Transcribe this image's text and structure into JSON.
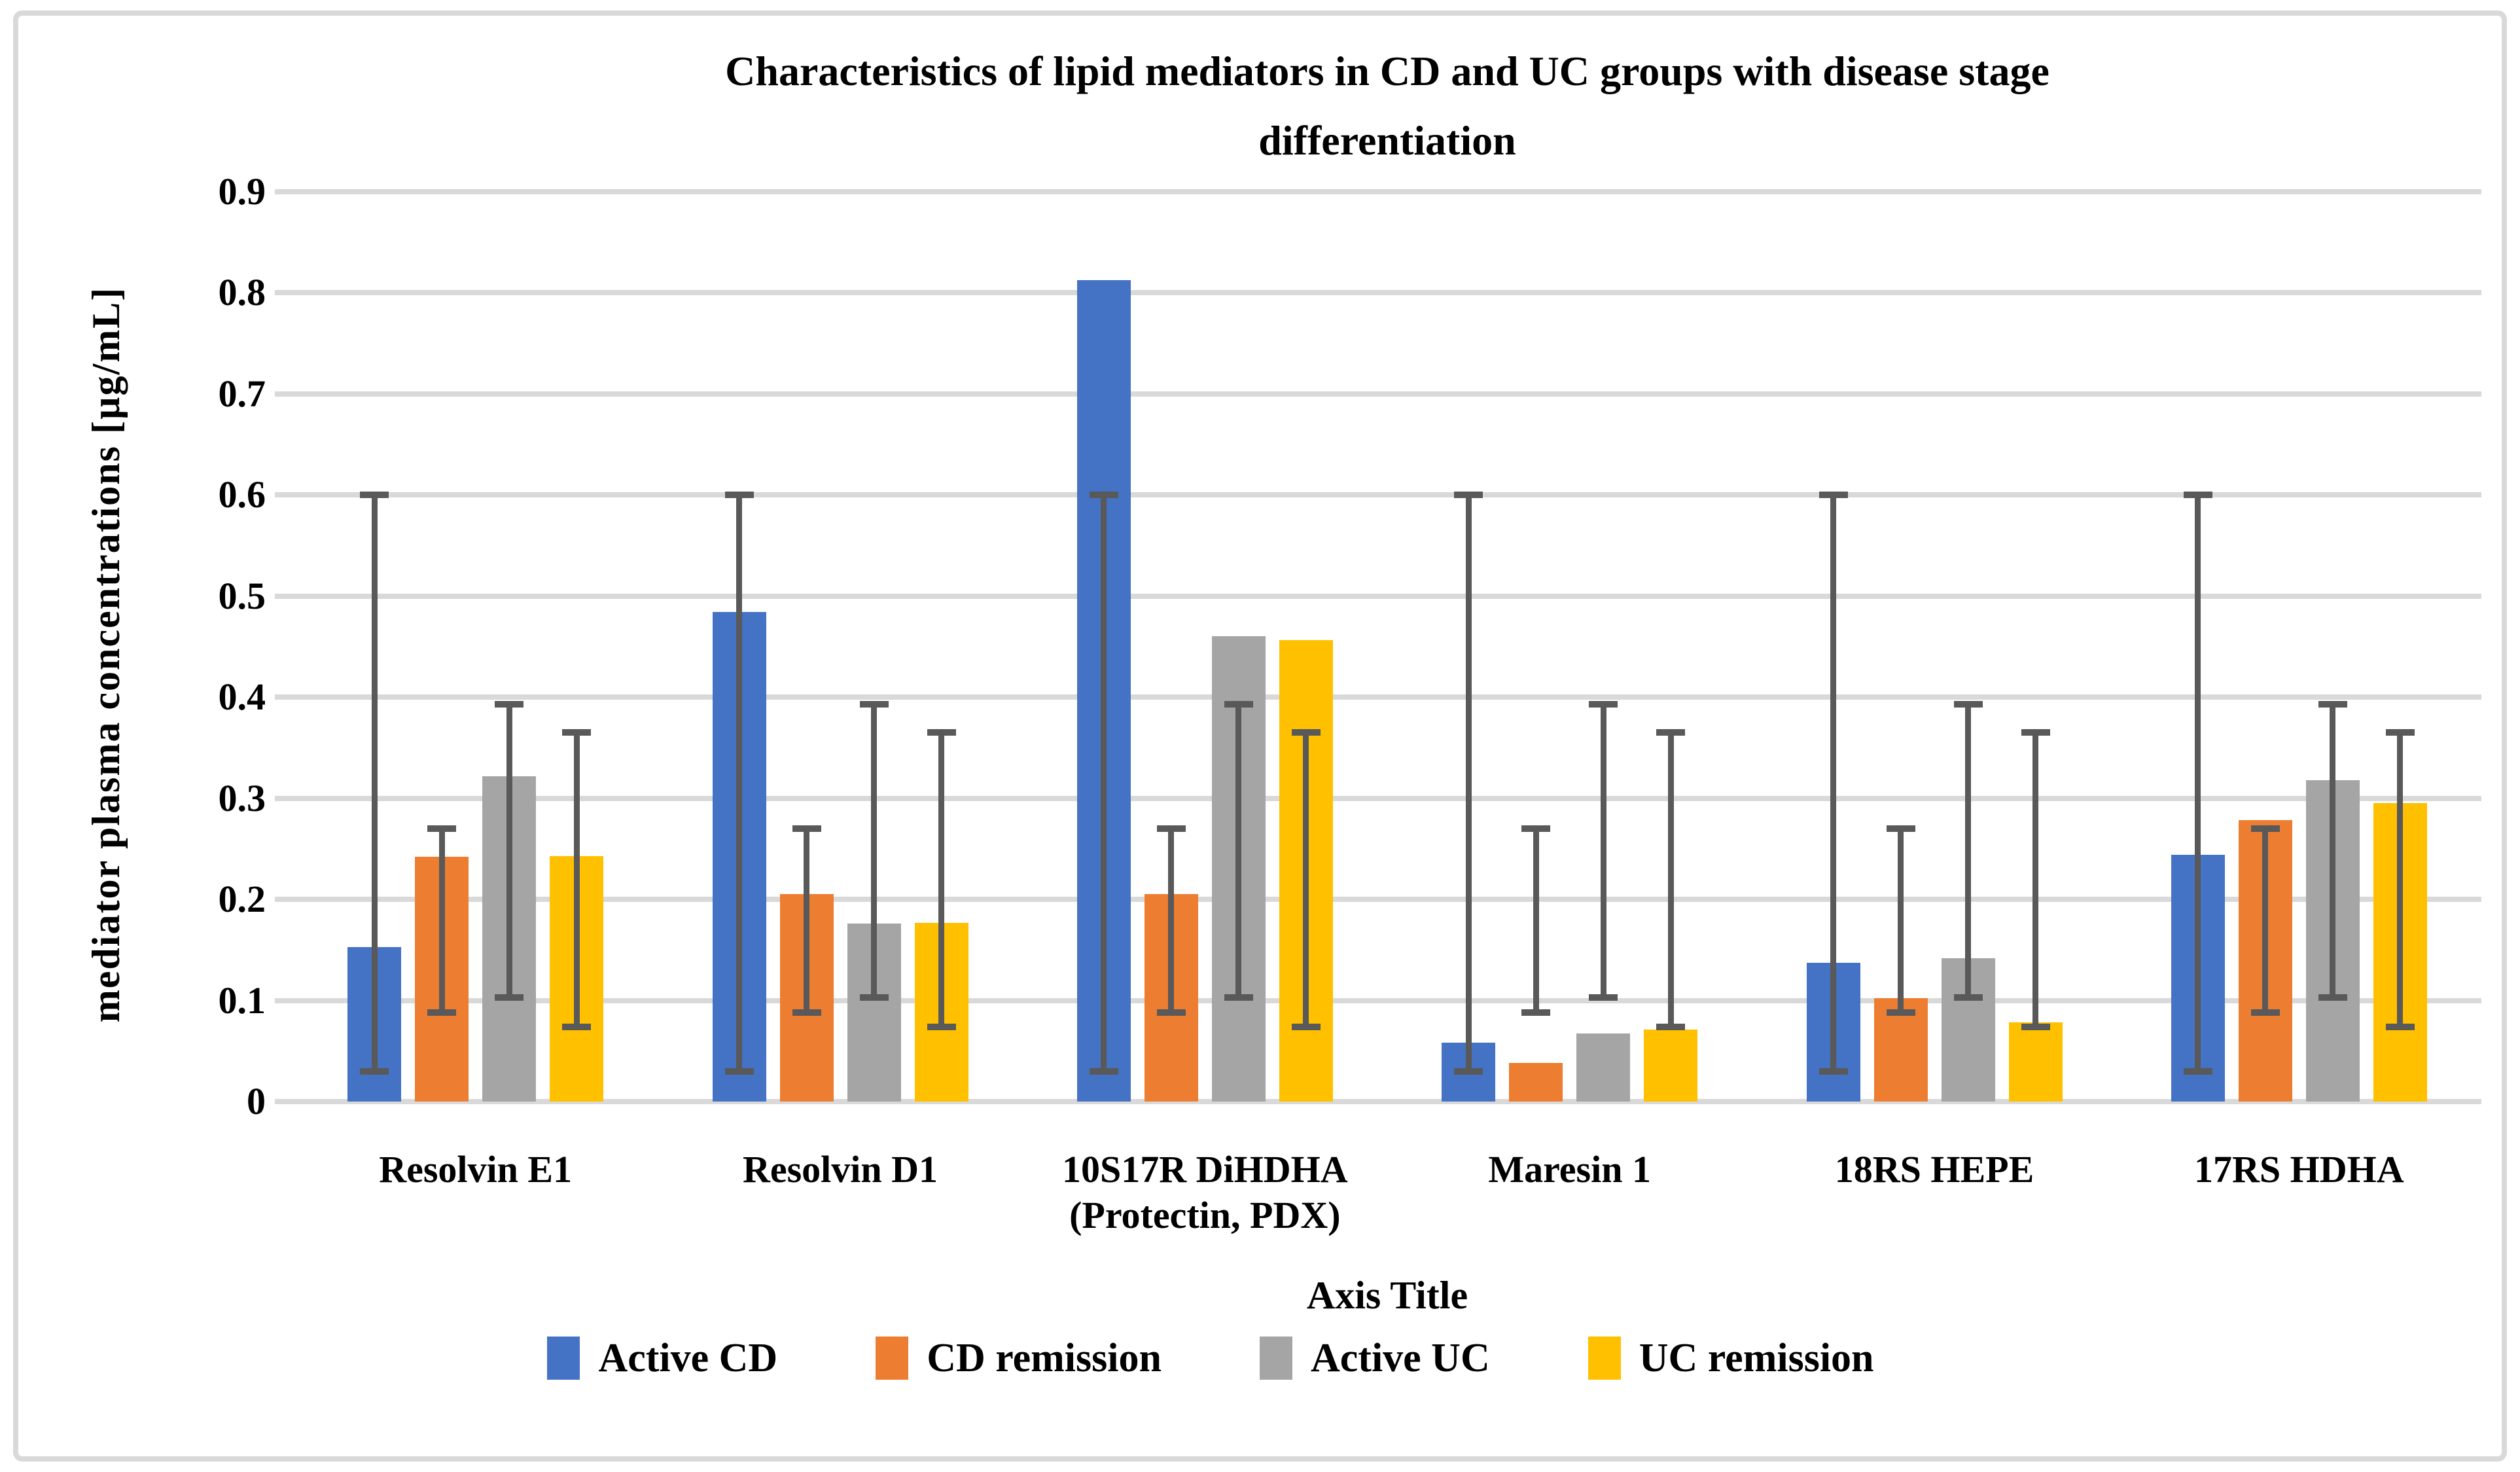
{
  "chart_data": {
    "type": "bar",
    "title": "Characteristics of lipid mediators in CD and UC groups with disease stage differentiation",
    "title_lines": [
      "Characteristics of lipid mediators in CD and UC groups with disease stage",
      "differentiation"
    ],
    "ylabel": "mediator plasma concentrations [µg/mL]",
    "xlabel": "Axis Title",
    "ylim": [
      0,
      0.9
    ],
    "ytick_step": 0.1,
    "yticks": [
      "0.9",
      "0.8",
      "0.7",
      "0.6",
      "0.5",
      "0.4",
      "0.3",
      "0.2",
      "0.1",
      "0"
    ],
    "grid": true,
    "legend_position": "bottom",
    "categories": [
      "Resolvin E1",
      "Resolvin D1",
      "10S17R DiHDHA (Protectin, PDX)",
      "Maresin 1",
      "18RS HEPE",
      "17RS HDHA"
    ],
    "category_label_lines": [
      [
        "Resolvin E1"
      ],
      [
        "Resolvin D1"
      ],
      [
        "10S17R DiHDHA",
        "(Protectin, PDX)"
      ],
      [
        "Maresin 1"
      ],
      [
        "18RS HEPE"
      ],
      [
        "17RS HDHA"
      ]
    ],
    "series": [
      {
        "name": "Active CD",
        "color": "#4472C4",
        "values": [
          0.153,
          0.484,
          0.812,
          0.058,
          0.137,
          0.244
        ],
        "error_low": 0.03,
        "error_high": 0.6
      },
      {
        "name": "CD remission",
        "color": "#ED7D31",
        "values": [
          0.242,
          0.205,
          0.205,
          0.038,
          0.102,
          0.278
        ],
        "error_low": 0.088,
        "error_high": 0.27
      },
      {
        "name": "Active UC",
        "color": "#A5A5A5",
        "values": [
          0.322,
          0.176,
          0.46,
          0.067,
          0.142,
          0.318
        ],
        "error_low": 0.103,
        "error_high": 0.393
      },
      {
        "name": "UC remission",
        "color": "#FFC000",
        "values": [
          0.243,
          0.177,
          0.456,
          0.071,
          0.078,
          0.295
        ],
        "error_low": 0.074,
        "error_high": 0.365
      }
    ],
    "error_bar_color": "#595959",
    "gridline_color": "#D9D9D9",
    "background": "#FFFFFF",
    "border_color": "#D9D9D9"
  }
}
